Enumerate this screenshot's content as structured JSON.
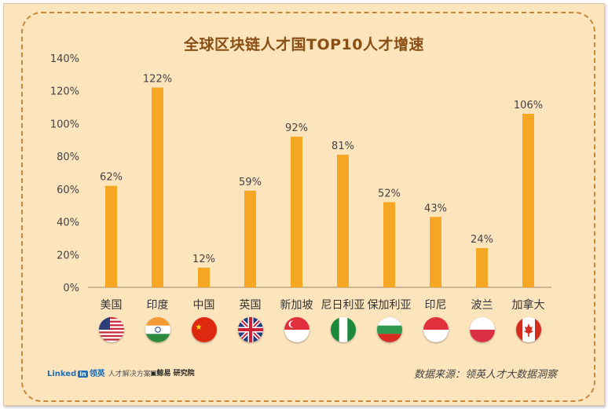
{
  "chart_data": {
    "type": "bar",
    "title": "全球区块链人才国TOP10人才增速",
    "categories": [
      "美国",
      "印度",
      "中国",
      "英国",
      "新加坡",
      "尼日利亚",
      "保加利亚",
      "印尼",
      "波兰",
      "加拿大"
    ],
    "values": [
      62,
      122,
      12,
      59,
      92,
      81,
      52,
      43,
      24,
      106
    ],
    "value_labels": [
      "62%",
      "122%",
      "12%",
      "59%",
      "92%",
      "81%",
      "52%",
      "43%",
      "24%",
      "106%"
    ],
    "y_ticks": [
      "0%",
      "20%",
      "40%",
      "60%",
      "80%",
      "100%",
      "120%",
      "140%"
    ],
    "ylim": [
      0,
      140
    ],
    "grid": false,
    "bar_color": "#f5a623",
    "flags": [
      "us-flag-icon",
      "india-flag-icon",
      "china-flag-icon",
      "uk-flag-icon",
      "singapore-flag-icon",
      "nigeria-flag-icon",
      "bulgaria-flag-icon",
      "indonesia-flag-icon",
      "poland-flag-icon",
      "canada-flag-icon"
    ]
  },
  "footer": {
    "linkedin_brand": "Linked",
    "linkedin_in": "in",
    "linkedin_cn": "领英",
    "linkedin_sub": "人才解决方案",
    "research_logo": "▣鲸易 研究院",
    "source": "数据来源：领英人才大数据洞察"
  }
}
